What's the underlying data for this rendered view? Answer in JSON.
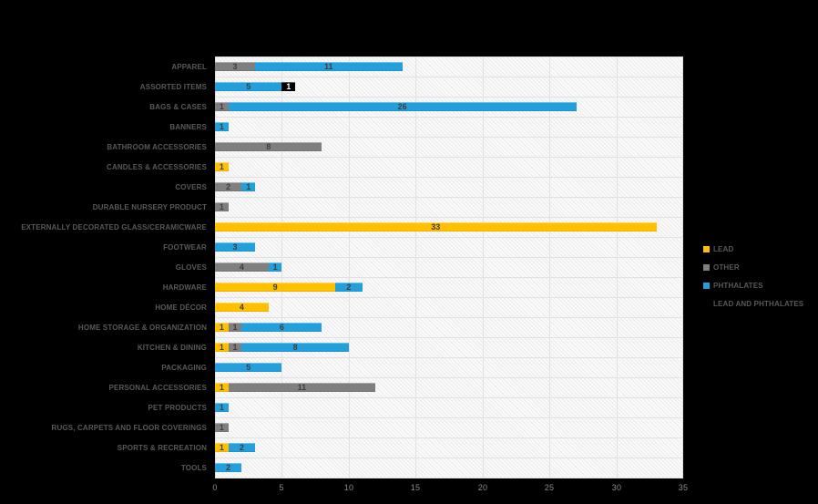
{
  "chart_data": {
    "type": "bar",
    "orientation": "horizontal",
    "stacked": true,
    "title": "",
    "xlabel": "",
    "ylabel": "",
    "xlim": [
      0,
      35
    ],
    "x_ticks": [
      0,
      5,
      10,
      15,
      20,
      25,
      30,
      35
    ],
    "grid": true,
    "legend_position": "right",
    "categories": [
      "APPAREL",
      "ASSORTED ITEMS",
      "BAGS & CASES",
      "BANNERS",
      "BATHROOM ACCESSORIES",
      "CANDLES & ACCESSORIES",
      "COVERS",
      "DURABLE NURSERY PRODUCT",
      "EXTERNALLY DECORATED GLASS/CERAMICWARE",
      "FOOTWEAR",
      "GLOVES",
      "HARDWARE",
      "HOME DÉCOR",
      "HOME STORAGE & ORGANIZATION",
      "KITCHEN & DINING",
      "PACKAGING",
      "PERSONAL ACCESSORIES",
      "PET PRODUCTS",
      "RUGS, CARPETS AND FLOOR COVERINGS",
      "SPORTS & RECREATION",
      "TOOLS"
    ],
    "series": [
      {
        "name": "LEAD",
        "color": "#FFC000",
        "values": [
          0,
          0,
          0,
          0,
          0,
          1,
          0,
          0,
          33,
          0,
          0,
          9,
          4,
          1,
          1,
          0,
          1,
          0,
          0,
          1,
          0
        ]
      },
      {
        "name": "OTHER",
        "color": "#7F7F7F",
        "values": [
          3,
          0,
          1,
          0,
          8,
          0,
          2,
          1,
          0,
          0,
          4,
          0,
          0,
          1,
          1,
          0,
          11,
          0,
          1,
          0,
          0
        ]
      },
      {
        "name": "PHTHALATES",
        "color": "#239FDB",
        "values": [
          11,
          5,
          26,
          1,
          0,
          0,
          1,
          0,
          0,
          3,
          1,
          2,
          0,
          6,
          8,
          5,
          0,
          1,
          0,
          2,
          2
        ]
      },
      {
        "name": "LEAD AND PHTHALATES",
        "color": "#000000",
        "values": [
          0,
          1,
          0,
          0,
          0,
          0,
          0,
          0,
          0,
          0,
          0,
          0,
          0,
          0,
          0,
          0,
          0,
          0,
          0,
          0,
          0
        ]
      }
    ]
  },
  "legend": {
    "items": [
      {
        "label": "LEAD",
        "color": "#FFC000"
      },
      {
        "label": "OTHER",
        "color": "#7F7F7F"
      },
      {
        "label": "PHTHALATES",
        "color": "#239FDB"
      },
      {
        "label": "LEAD AND PHTHALATES",
        "color": "#000000"
      }
    ]
  },
  "colors": {
    "background": "#000000",
    "plot_background": "#FFFFFF",
    "gridline": "#E2E2E2",
    "category_label": "#595959",
    "axis_tick_label": "#8C8C8C",
    "value_label": "#3F3F3F",
    "value_label_on_dark": "#FFFFFF"
  }
}
